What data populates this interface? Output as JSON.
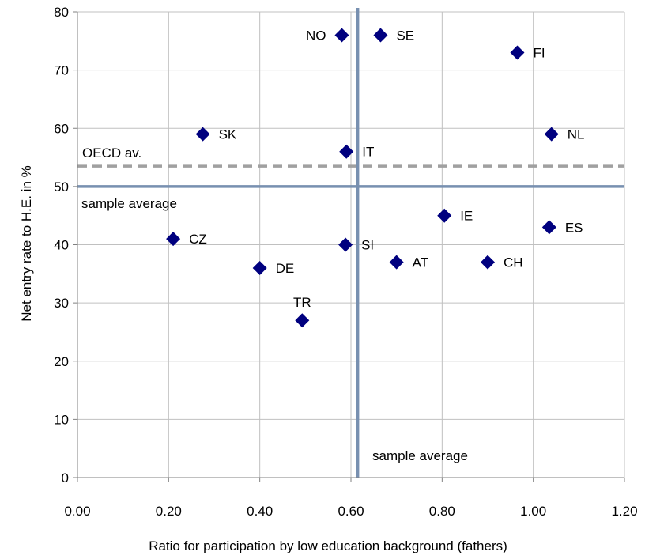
{
  "chart_data": {
    "type": "scatter",
    "xlabel": "Ratio for participation by low education background (fathers)",
    "ylabel": "Net entry rate to H.E. in %",
    "xlim": [
      0,
      1.2
    ],
    "ylim": [
      0,
      80
    ],
    "x_ticks": [
      "0.00",
      "0.20",
      "0.40",
      "0.60",
      "0.80",
      "1.00",
      "1.20"
    ],
    "y_ticks": [
      "0",
      "10",
      "20",
      "30",
      "40",
      "50",
      "60",
      "70",
      "80"
    ],
    "grid": true,
    "marker_color": "#00007f",
    "reference_line_color": "#7890b0",
    "oecd_line_color": "#a0a0a0",
    "points": [
      {
        "label": "NO",
        "x": 0.58,
        "y": 76
      },
      {
        "label": "SE",
        "x": 0.665,
        "y": 76
      },
      {
        "label": "FI",
        "x": 0.965,
        "y": 73
      },
      {
        "label": "SK",
        "x": 0.275,
        "y": 59
      },
      {
        "label": "NL",
        "x": 1.04,
        "y": 59
      },
      {
        "label": "IT",
        "x": 0.59,
        "y": 56
      },
      {
        "label": "IE",
        "x": 0.805,
        "y": 45
      },
      {
        "label": "ES",
        "x": 1.035,
        "y": 43
      },
      {
        "label": "CZ",
        "x": 0.21,
        "y": 41
      },
      {
        "label": "SI",
        "x": 0.588,
        "y": 40
      },
      {
        "label": "DE",
        "x": 0.4,
        "y": 36
      },
      {
        "label": "AT",
        "x": 0.7,
        "y": 37
      },
      {
        "label": "CH",
        "x": 0.9,
        "y": 37
      },
      {
        "label": "TR",
        "x": 0.493,
        "y": 27
      }
    ],
    "reference_lines": {
      "sample_average_y": {
        "value": 50,
        "label": "sample average"
      },
      "sample_average_x": {
        "value": 0.615,
        "label": "sample average"
      },
      "oecd_average_y": {
        "value": 53.5,
        "label": "OECD av."
      }
    }
  }
}
